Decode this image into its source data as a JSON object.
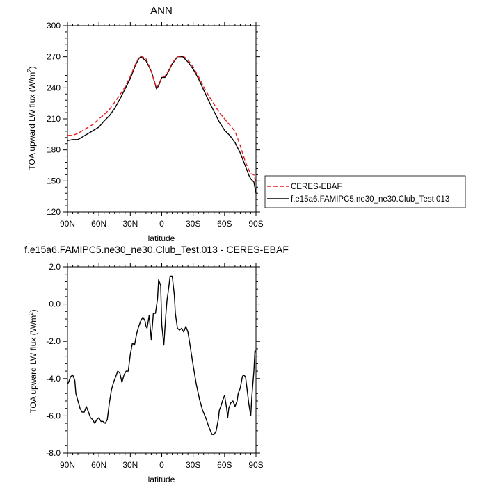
{
  "chart_data": [
    {
      "type": "line",
      "title": "ANN",
      "xlabel": "latitude",
      "ylabel": "TOA upward LW flux (W/m",
      "ylabel_sup": "2",
      "ylabel_close": ")",
      "xlim": [
        90,
        -90
      ],
      "ylim": [
        120,
        300
      ],
      "xticks": [
        {
          "value": 90,
          "label": "90N"
        },
        {
          "value": 60,
          "label": "60N"
        },
        {
          "value": 30,
          "label": "30N"
        },
        {
          "value": 0,
          "label": "0"
        },
        {
          "value": -30,
          "label": "30S"
        },
        {
          "value": -60,
          "label": "60S"
        },
        {
          "value": -90,
          "label": "90S"
        }
      ],
      "yticks": [
        120,
        150,
        180,
        210,
        240,
        270,
        300
      ],
      "legend_placement": "right",
      "series": [
        {
          "name": "CERES-EBAF",
          "color": "#e8191e",
          "dash": "dashed",
          "x": [
            90,
            85,
            80,
            75,
            70,
            65,
            60,
            55,
            50,
            45,
            40,
            35,
            30,
            25,
            22,
            20,
            15,
            10,
            7,
            5,
            3,
            0,
            -3,
            -5,
            -10,
            -15,
            -20,
            -25,
            -30,
            -35,
            -40,
            -45,
            -50,
            -55,
            -60,
            -65,
            -70,
            -75,
            -80,
            -83,
            -85,
            -88,
            -90
          ],
          "values": [
            194,
            194,
            196,
            199,
            202,
            205,
            210,
            214,
            219,
            226,
            233,
            241,
            251,
            263,
            269,
            271,
            268,
            256,
            246,
            240,
            243,
            250,
            251,
            254,
            264,
            270,
            271,
            267,
            260,
            251,
            241,
            232,
            224,
            216,
            210,
            204,
            198,
            184,
            168,
            161,
            157,
            156,
            148
          ]
        },
        {
          "name": "f.e15a6.FAMIPC5.ne30_ne30.Club_Test.013",
          "color": "#000000",
          "dash": "solid",
          "x": [
            90,
            85,
            80,
            75,
            70,
            65,
            60,
            55,
            50,
            45,
            40,
            35,
            30,
            25,
            22,
            20,
            15,
            10,
            7,
            5,
            3,
            0,
            -3,
            -5,
            -10,
            -15,
            -20,
            -25,
            -30,
            -35,
            -40,
            -45,
            -50,
            -55,
            -60,
            -65,
            -70,
            -75,
            -80,
            -83,
            -85,
            -88,
            -90
          ],
          "values": [
            189,
            190,
            190,
            193,
            196,
            199,
            202,
            208,
            213,
            220,
            229,
            239,
            249,
            262,
            268,
            270,
            266,
            256,
            246,
            239,
            242,
            250,
            250,
            253,
            263,
            270,
            270,
            265,
            258,
            249,
            238,
            227,
            217,
            207,
            199,
            194,
            187,
            177,
            164,
            156,
            152,
            149,
            138
          ]
        }
      ]
    },
    {
      "type": "line",
      "title": "f.e15a6.FAMIPC5.ne30_ne30.Club_Test.013 - CERES-EBAF",
      "xlabel": "latitude",
      "ylabel": "TOA upward LW flux (W/m",
      "ylabel_sup": "2",
      "ylabel_close": ")",
      "xlim": [
        90,
        -90
      ],
      "ylim": [
        -8,
        2
      ],
      "xticks": [
        {
          "value": 90,
          "label": "90N"
        },
        {
          "value": 60,
          "label": "60N"
        },
        {
          "value": 30,
          "label": "30N"
        },
        {
          "value": 0,
          "label": "0"
        },
        {
          "value": -30,
          "label": "30S"
        },
        {
          "value": -60,
          "label": "60S"
        },
        {
          "value": -90,
          "label": "90S"
        }
      ],
      "yticks": [
        {
          "value": 2,
          "label": "2.0"
        },
        {
          "value": 0,
          "label": "0.0"
        },
        {
          "value": -2,
          "label": "-2.0"
        },
        {
          "value": -4,
          "label": "-4.0"
        },
        {
          "value": -6,
          "label": "-6.0"
        },
        {
          "value": -8,
          "label": "-8.0"
        }
      ],
      "series": [
        {
          "color": "#000000",
          "x": [
            90,
            89,
            87,
            85,
            83,
            82,
            80,
            78,
            76,
            74,
            72,
            70,
            68,
            66,
            64,
            62,
            60,
            58,
            56,
            54,
            52,
            50,
            48,
            46,
            44,
            42,
            40,
            38,
            36,
            34,
            32,
            30,
            28,
            26,
            24,
            22,
            20,
            18,
            16,
            15,
            14,
            12,
            10,
            8,
            6,
            4,
            3,
            1,
            0,
            -2,
            -4,
            -5,
            -6,
            -8,
            -10,
            -12,
            -13,
            -15,
            -17,
            -19,
            -21,
            -23,
            -25,
            -27,
            -30,
            -33,
            -36,
            -39,
            -42,
            -45,
            -48,
            -50,
            -52,
            -54,
            -55,
            -57,
            -58,
            -60,
            -62,
            -63,
            -64,
            -66,
            -68,
            -70,
            -72,
            -73,
            -75,
            -77,
            -78,
            -80,
            -82,
            -83,
            -85,
            -86,
            -88,
            -89,
            -90
          ],
          "values": [
            -4.3,
            -4.2,
            -3.9,
            -3.8,
            -4.1,
            -4.8,
            -5.2,
            -5.6,
            -5.8,
            -5.8,
            -5.5,
            -5.8,
            -6.1,
            -6.2,
            -6.4,
            -6.2,
            -6.1,
            -6.3,
            -6.3,
            -6.4,
            -6.2,
            -5.3,
            -4.6,
            -4.2,
            -3.9,
            -3.6,
            -3.7,
            -4.2,
            -3.8,
            -3.6,
            -3.6,
            -2.7,
            -2.1,
            -2.2,
            -1.6,
            -1.2,
            -0.9,
            -0.7,
            -0.9,
            -1.2,
            -1.3,
            -0.6,
            -1.9,
            -0.5,
            -0.5,
            0.3,
            1.3,
            1.0,
            -1.1,
            -2.2,
            -0.5,
            0.2,
            0.6,
            1.5,
            1.5,
            0.5,
            -0.5,
            -1.3,
            -1.4,
            -1.3,
            -1.5,
            -1.2,
            -1.5,
            -2.2,
            -3.3,
            -4.3,
            -5.1,
            -5.7,
            -6.1,
            -6.6,
            -7.0,
            -7.0,
            -6.8,
            -6.2,
            -5.7,
            -5.4,
            -5.2,
            -4.9,
            -5.6,
            -6.1,
            -5.6,
            -5.3,
            -5.2,
            -5.5,
            -5.2,
            -4.8,
            -4.5,
            -3.9,
            -3.8,
            -3.9,
            -4.8,
            -5.3,
            -6.0,
            -5.0,
            -3.6,
            -2.5,
            -2.6
          ]
        }
      ]
    }
  ]
}
